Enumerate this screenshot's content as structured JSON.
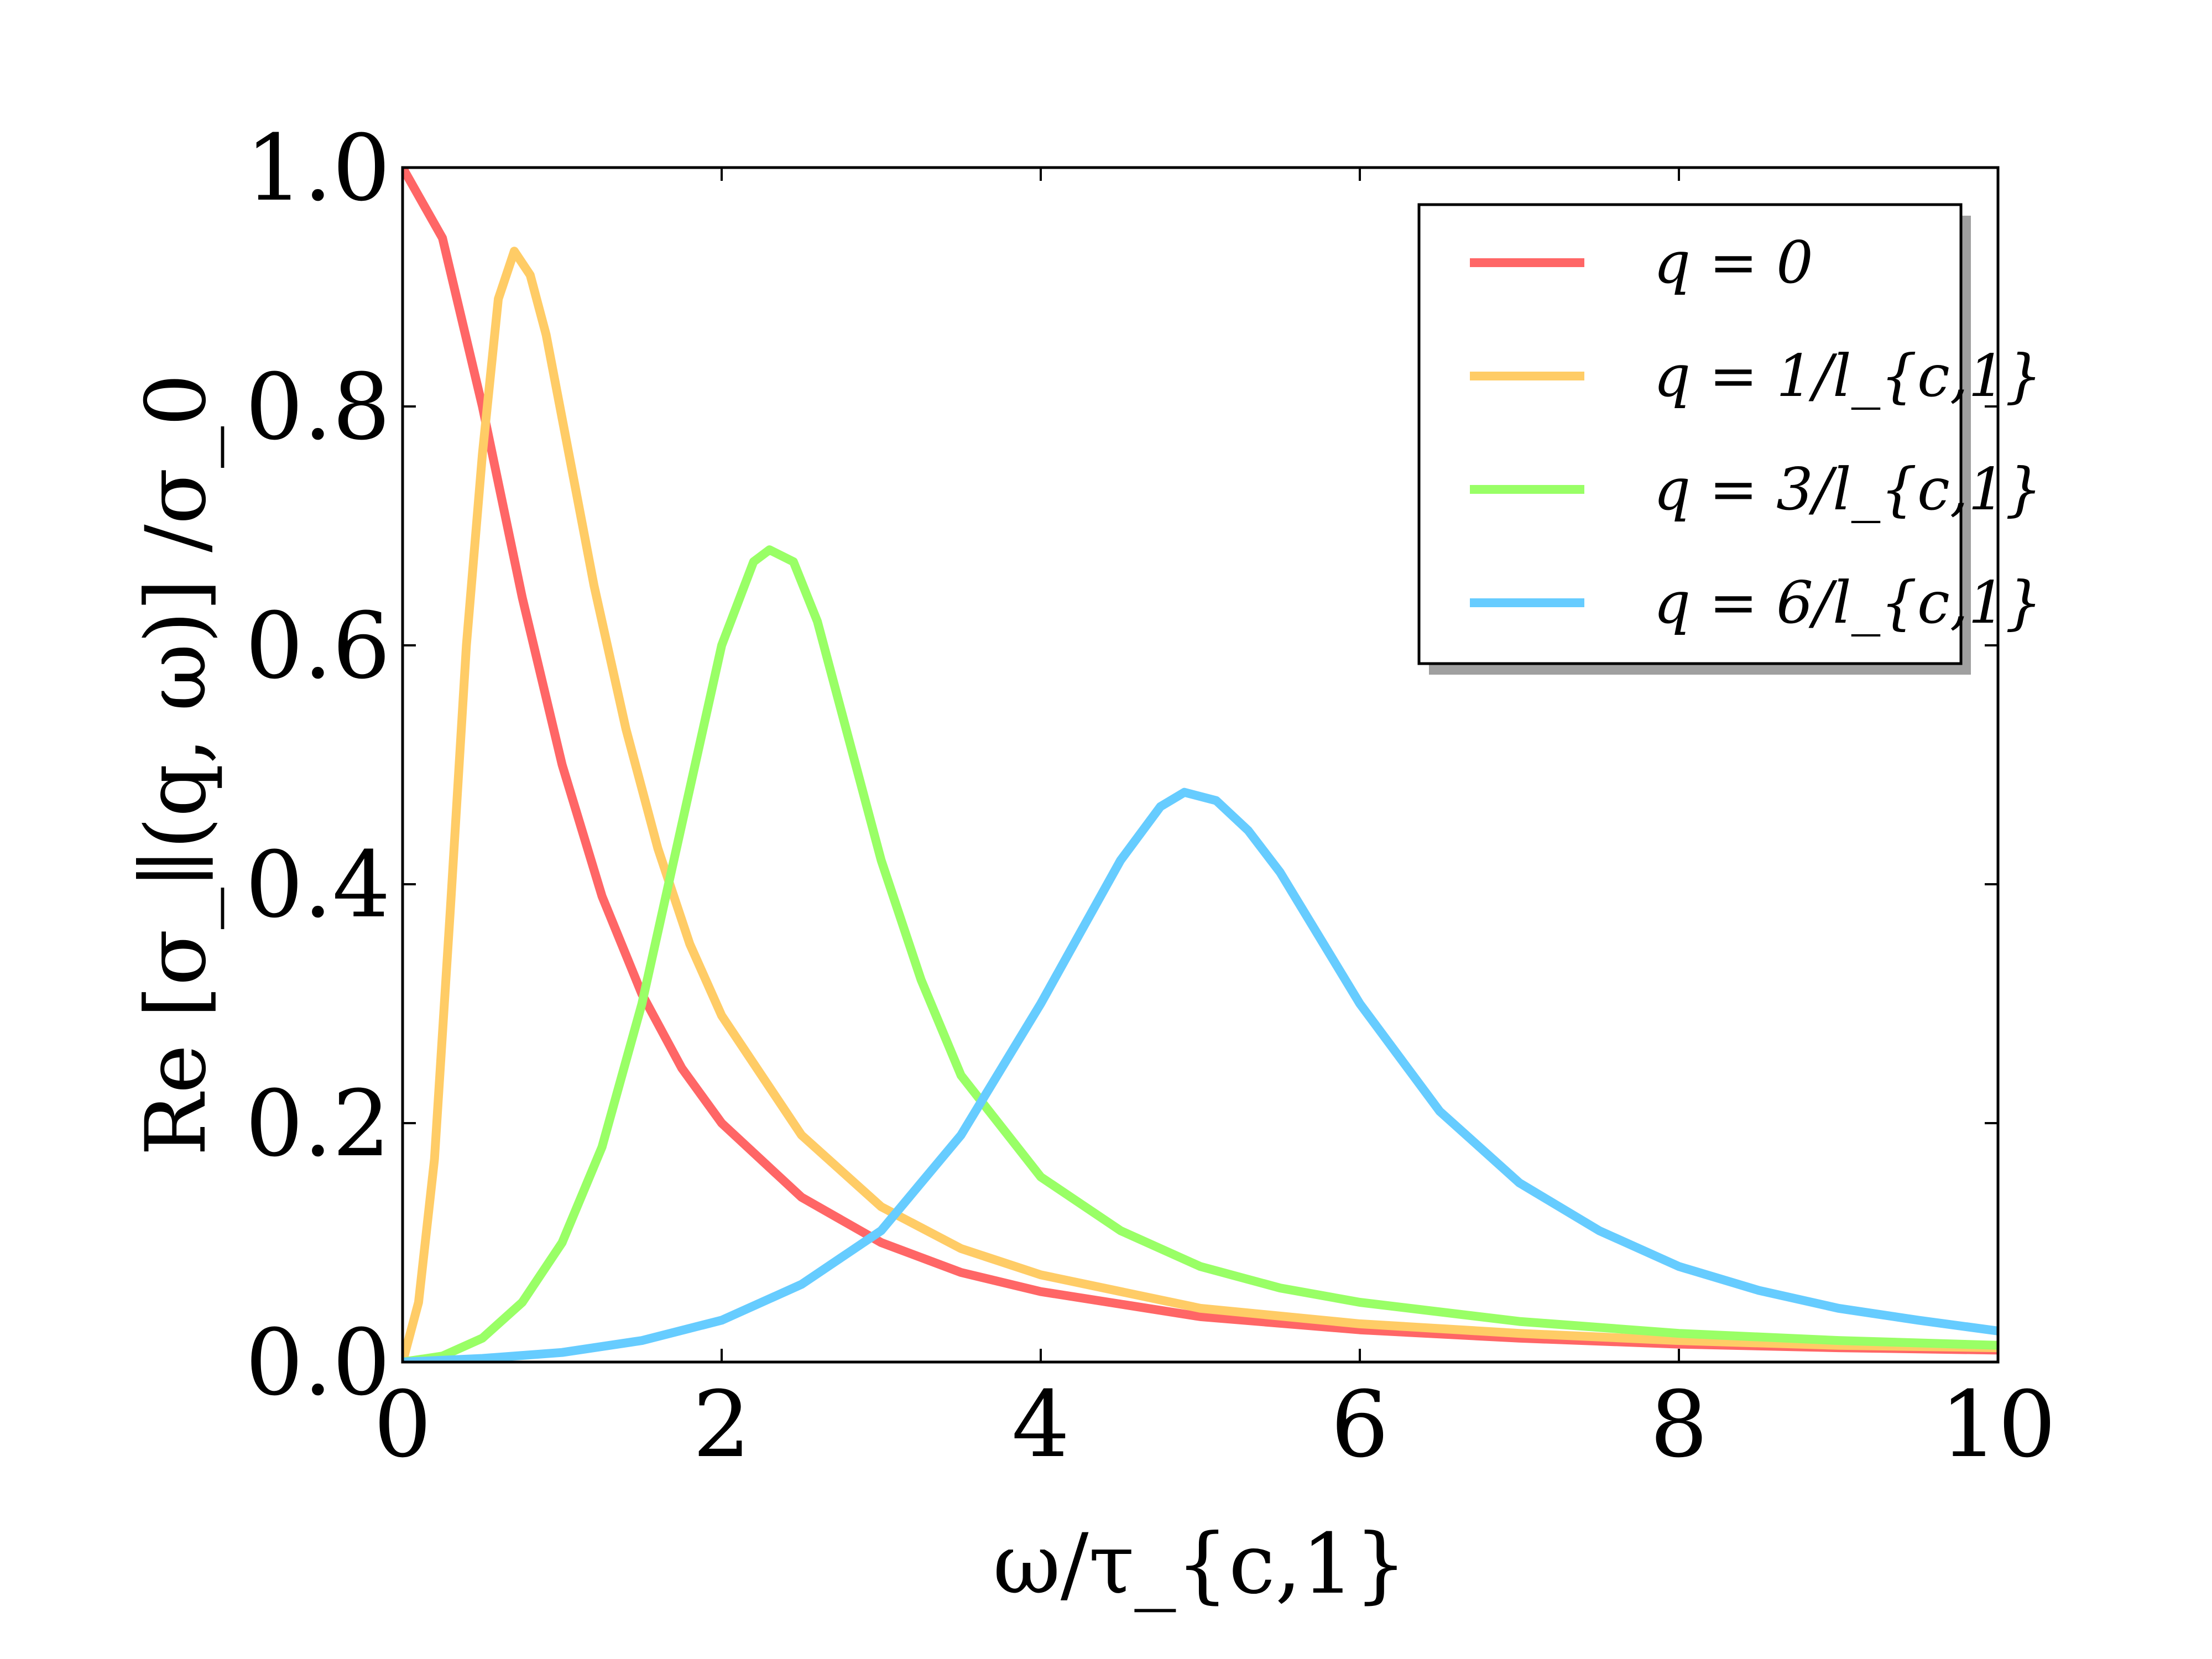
{
  "chart_data": {
    "type": "line",
    "xlabel": "ω/τ_{c,1}",
    "ylabel": "Re [σ_∥(q, ω)] /σ_0",
    "xlim": [
      0,
      10
    ],
    "ylim": [
      0,
      1.0
    ],
    "x_ticks": [
      "0",
      "2",
      "4",
      "6",
      "8",
      "10"
    ],
    "y_ticks": [
      "0.0",
      "0.2",
      "0.4",
      "0.6",
      "0.8",
      "1.0"
    ],
    "grid": false,
    "legend_position": "top-right",
    "series": [
      {
        "name": "q = 0",
        "color": "#ff6666",
        "x": [
          0,
          0.25,
          0.5,
          0.75,
          1,
          1.25,
          1.5,
          1.75,
          2,
          2.5,
          3,
          3.5,
          4,
          5,
          6,
          7,
          8,
          9,
          10
        ],
        "y": [
          1.0,
          0.941,
          0.8,
          0.64,
          0.5,
          0.39,
          0.308,
          0.246,
          0.2,
          0.138,
          0.1,
          0.075,
          0.059,
          0.038,
          0.027,
          0.02,
          0.015,
          0.012,
          0.01
        ]
      },
      {
        "name": "q = 1/l_{c,1}",
        "color": "#ffcc66",
        "x": [
          0,
          0.1,
          0.2,
          0.3,
          0.4,
          0.5,
          0.6,
          0.7,
          0.8,
          0.9,
          1.0,
          1.2,
          1.4,
          1.6,
          1.8,
          2.0,
          2.5,
          3,
          3.5,
          4,
          5,
          6,
          7,
          8,
          9,
          10
        ],
        "y": [
          0.0,
          0.05,
          0.17,
          0.38,
          0.6,
          0.76,
          0.89,
          0.93,
          0.91,
          0.86,
          0.79,
          0.65,
          0.53,
          0.43,
          0.35,
          0.29,
          0.19,
          0.13,
          0.095,
          0.073,
          0.045,
          0.032,
          0.024,
          0.018,
          0.014,
          0.012
        ]
      },
      {
        "name": "q = 3/l_{c,1}",
        "color": "#99ff66",
        "x": [
          0,
          0.25,
          0.5,
          0.75,
          1,
          1.25,
          1.5,
          1.75,
          2,
          2.2,
          2.3,
          2.45,
          2.6,
          2.8,
          3,
          3.25,
          3.5,
          4,
          4.5,
          5,
          5.5,
          6,
          7,
          8,
          9,
          10
        ],
        "y": [
          0.0,
          0.005,
          0.02,
          0.05,
          0.1,
          0.18,
          0.3,
          0.45,
          0.6,
          0.67,
          0.68,
          0.67,
          0.62,
          0.52,
          0.42,
          0.32,
          0.24,
          0.155,
          0.11,
          0.08,
          0.062,
          0.05,
          0.034,
          0.024,
          0.018,
          0.014
        ]
      },
      {
        "name": "q = 6/l_{c,1}",
        "color": "#66ccff",
        "x": [
          0,
          0.5,
          1,
          1.5,
          2,
          2.5,
          3,
          3.5,
          4,
          4.25,
          4.5,
          4.75,
          4.9,
          5.1,
          5.3,
          5.5,
          5.75,
          6,
          6.5,
          7,
          7.5,
          8,
          8.5,
          9,
          9.5,
          10
        ],
        "y": [
          0.0,
          0.003,
          0.008,
          0.018,
          0.035,
          0.065,
          0.11,
          0.19,
          0.3,
          0.36,
          0.42,
          0.465,
          0.477,
          0.47,
          0.445,
          0.41,
          0.355,
          0.3,
          0.21,
          0.15,
          0.11,
          0.08,
          0.06,
          0.045,
          0.035,
          0.026
        ]
      }
    ]
  }
}
